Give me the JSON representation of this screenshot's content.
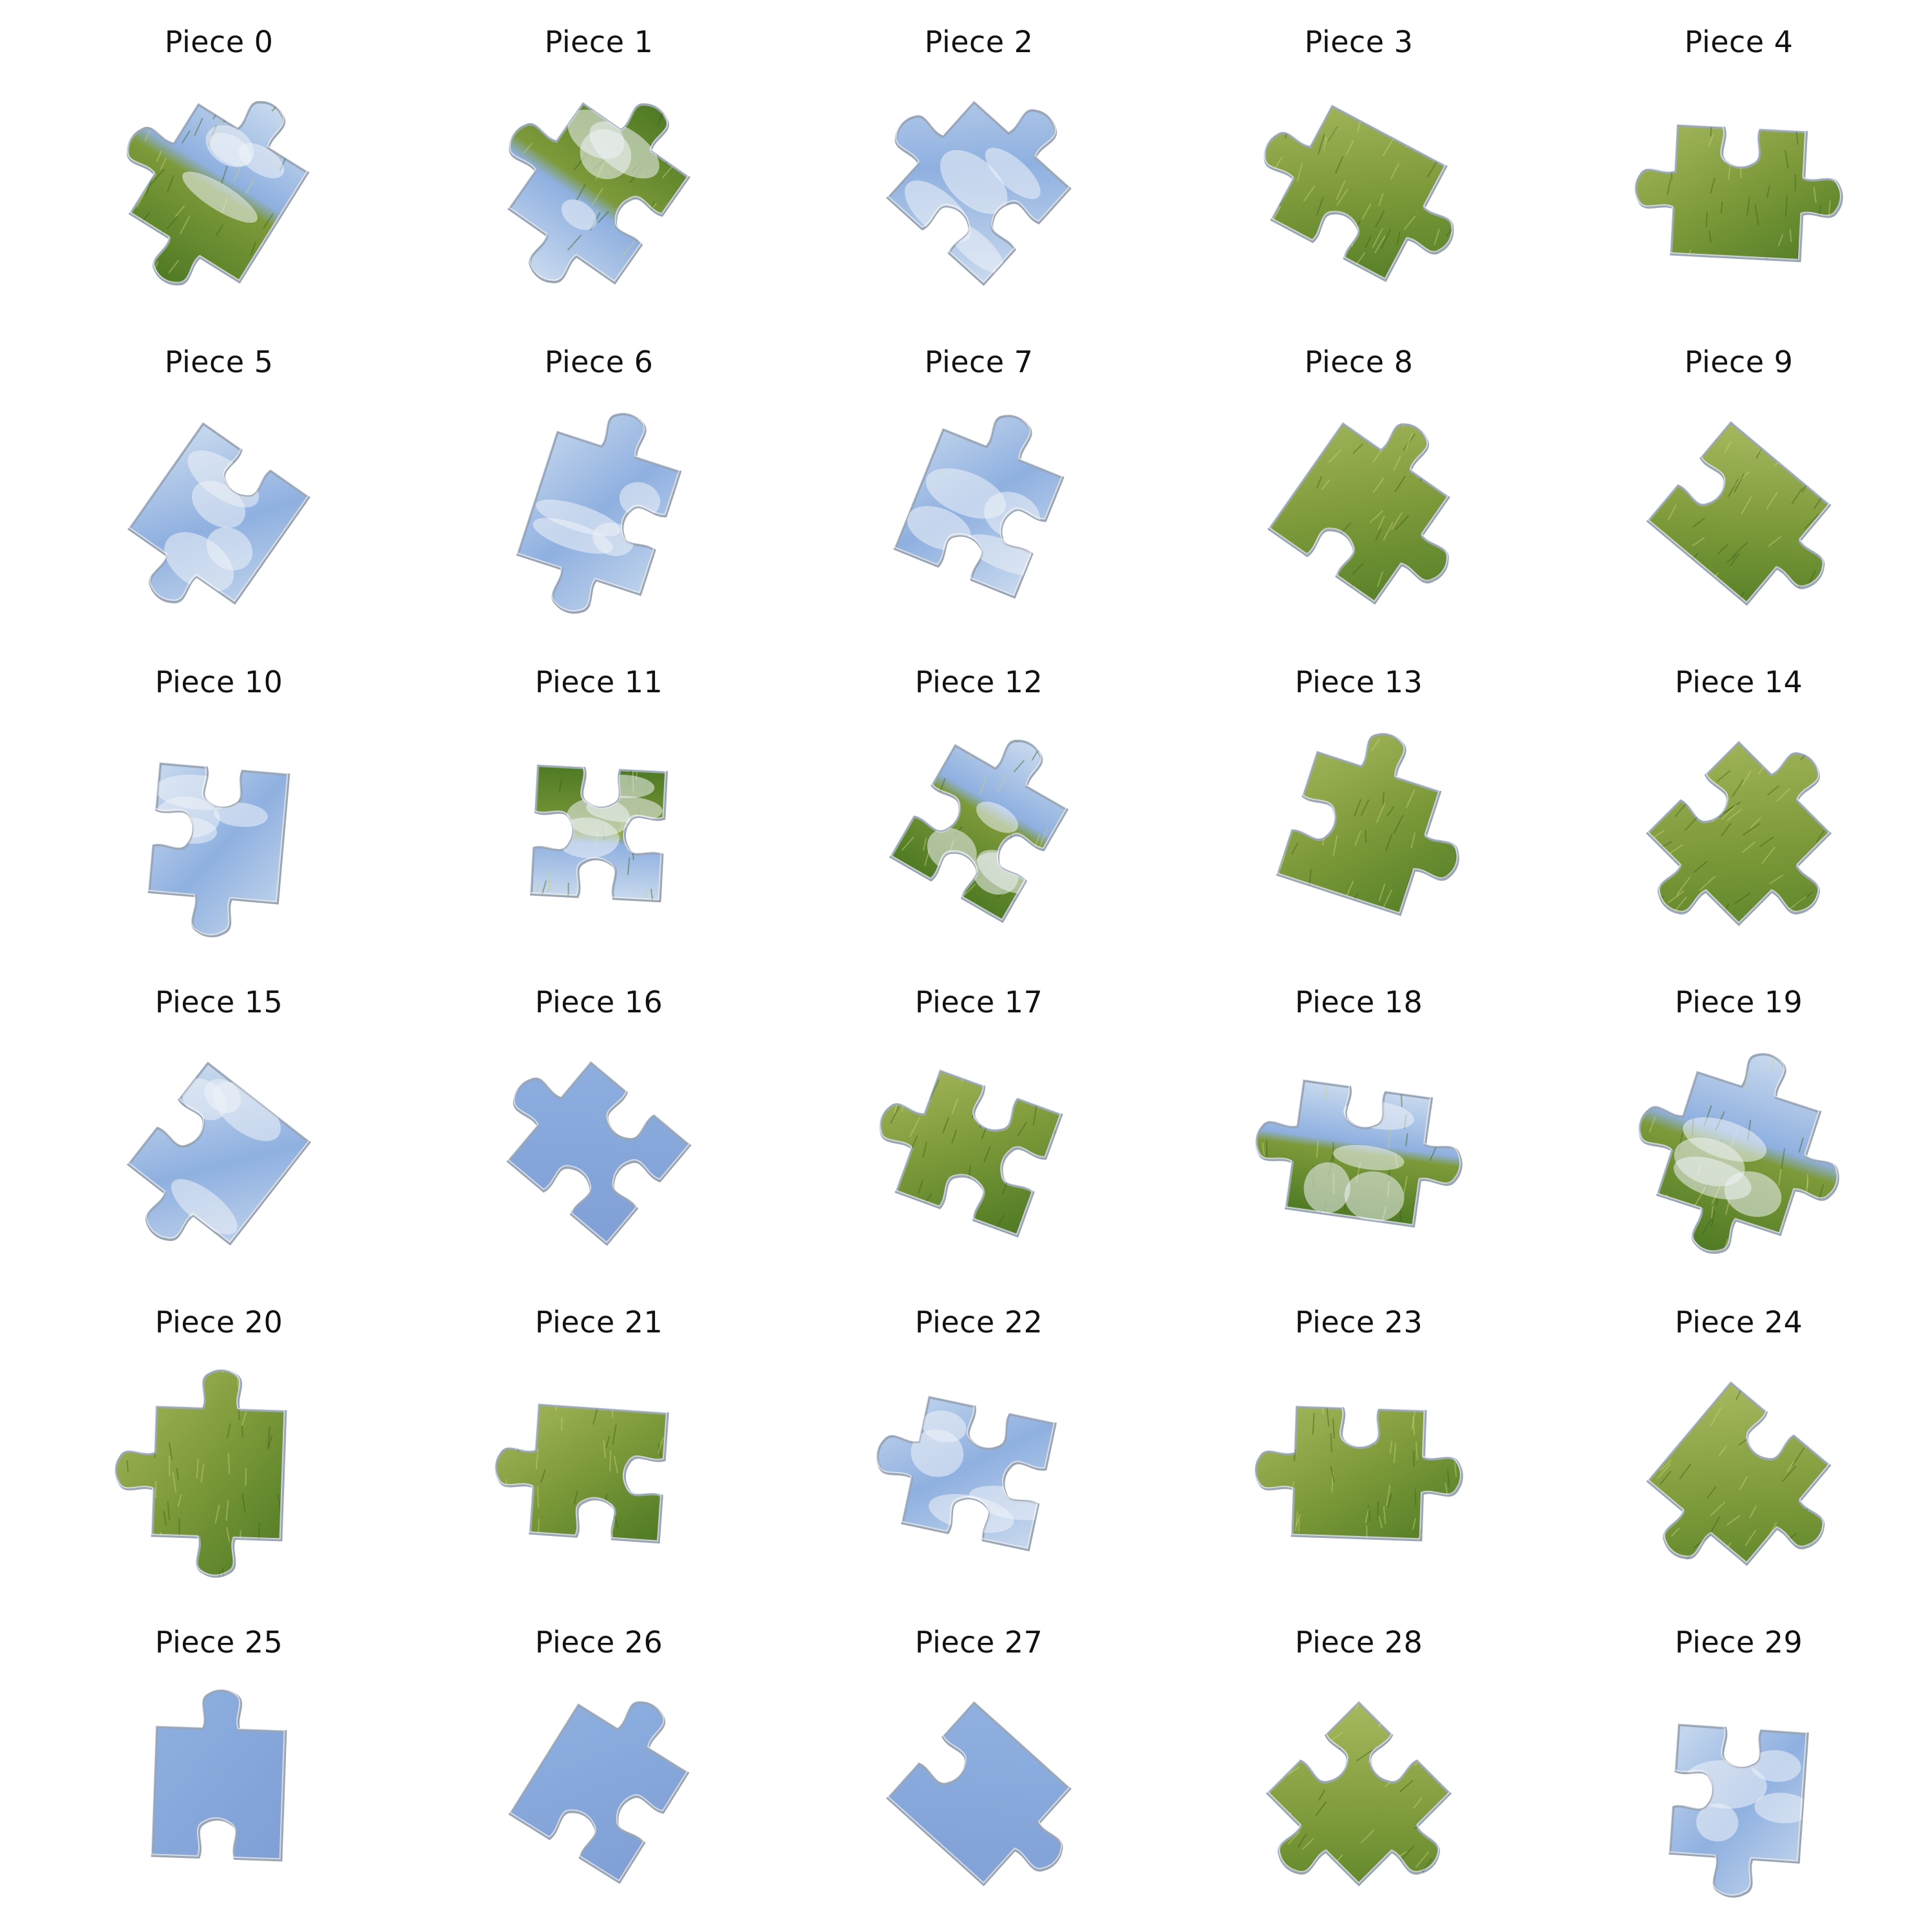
{
  "colors": {
    "sky": "#8fb0e0",
    "sky_light": "#c8d9ee",
    "cloud": "#eef2f8",
    "grass_dark": "#4f7a24",
    "grass": "#7d9a3a",
    "grass_light": "#a7b85e",
    "edge": "#9aa6b6",
    "title": "#111111"
  },
  "pieces": [
    {
      "label": "Piece 0",
      "kind": "sky-grass",
      "rot": 32
    },
    {
      "label": "Piece 1",
      "kind": "grass-sky",
      "rot": 35
    },
    {
      "label": "Piece 2",
      "kind": "sky-cloud",
      "rot": 42
    },
    {
      "label": "Piece 3",
      "kind": "grass",
      "rot": 28
    },
    {
      "label": "Piece 4",
      "kind": "grass",
      "rot": 3
    },
    {
      "label": "Piece 5",
      "kind": "sky-cloud",
      "rot": 35
    },
    {
      "label": "Piece 6",
      "kind": "sky-cloud",
      "rot": 18
    },
    {
      "label": "Piece 7",
      "kind": "sky-cloud",
      "rot": 22
    },
    {
      "label": "Piece 8",
      "kind": "grass",
      "rot": 35
    },
    {
      "label": "Piece 9",
      "kind": "grass",
      "rot": 40
    },
    {
      "label": "Piece 10",
      "kind": "sky-cloud",
      "rot": 5
    },
    {
      "label": "Piece 11",
      "kind": "grass-sky",
      "rot": 3
    },
    {
      "label": "Piece 12",
      "kind": "sky-grass",
      "rot": 30
    },
    {
      "label": "Piece 13",
      "kind": "grass",
      "rot": 18
    },
    {
      "label": "Piece 14",
      "kind": "grass",
      "rot": 45
    },
    {
      "label": "Piece 15",
      "kind": "sky-cloud",
      "rot": 38
    },
    {
      "label": "Piece 16",
      "kind": "sky",
      "rot": 40
    },
    {
      "label": "Piece 17",
      "kind": "grass",
      "rot": 20
    },
    {
      "label": "Piece 18",
      "kind": "sky-grass",
      "rot": 8
    },
    {
      "label": "Piece 19",
      "kind": "sky-grass",
      "rot": 18
    },
    {
      "label": "Piece 20",
      "kind": "grass",
      "rot": 2
    },
    {
      "label": "Piece 21",
      "kind": "grass",
      "rot": 4
    },
    {
      "label": "Piece 22",
      "kind": "sky-cloud",
      "rot": 12
    },
    {
      "label": "Piece 23",
      "kind": "grass",
      "rot": 2
    },
    {
      "label": "Piece 24",
      "kind": "grass",
      "rot": 40
    },
    {
      "label": "Piece 25",
      "kind": "sky",
      "rot": 2
    },
    {
      "label": "Piece 26",
      "kind": "sky",
      "rot": 32
    },
    {
      "label": "Piece 27",
      "kind": "sky",
      "rot": 42
    },
    {
      "label": "Piece 28",
      "kind": "grass",
      "rot": 45
    },
    {
      "label": "Piece 29",
      "kind": "sky-cloud",
      "rot": 4
    }
  ]
}
